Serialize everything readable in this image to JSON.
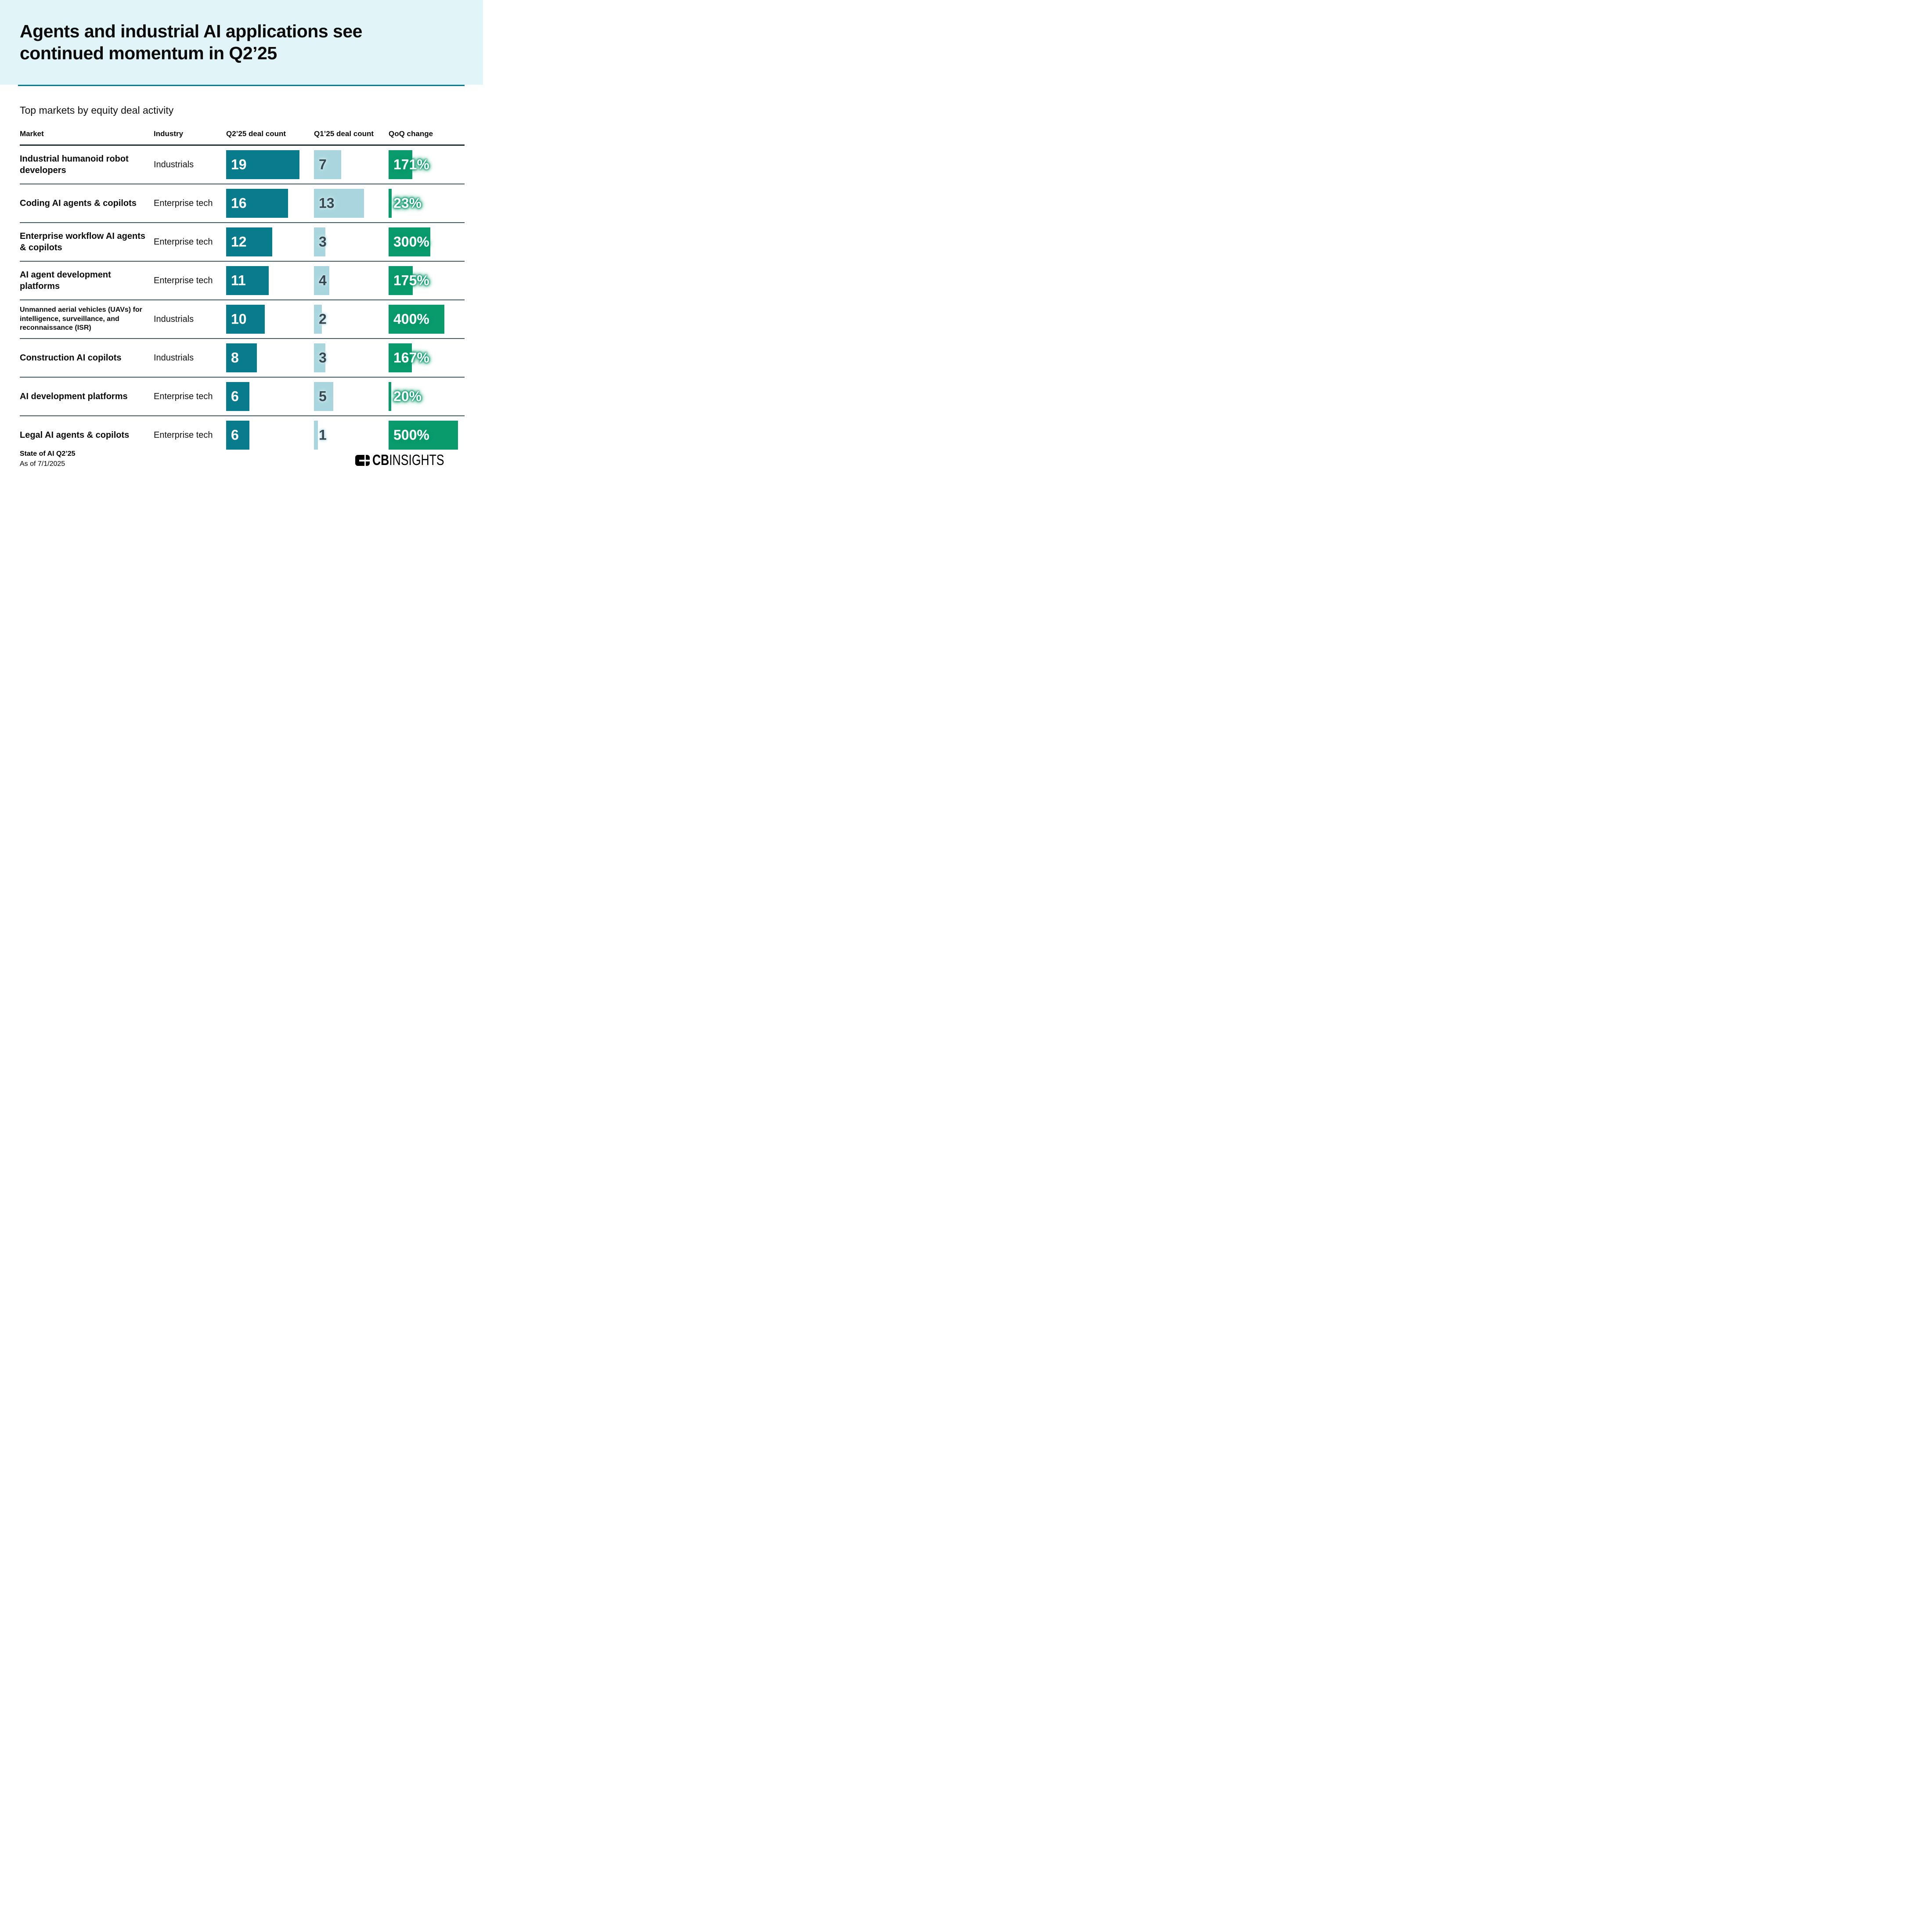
{
  "header": {
    "title": "Agents and industrial AI applications see continued momentum in Q2’25",
    "subtitle": "Top markets by equity deal activity"
  },
  "table": {
    "columns": [
      "Market",
      "Industry",
      "Q2’25 deal count",
      "Q1’25 deal count",
      "QoQ change"
    ],
    "rows": [
      {
        "market": "Industrial humanoid robot developers",
        "industry": "Industrials",
        "q2": 19,
        "q1": 7,
        "qoq": "171%",
        "qoq_pct": 171
      },
      {
        "market": "Coding AI agents & copilots",
        "industry": "Enterprise tech",
        "q2": 16,
        "q1": 13,
        "qoq": "23%",
        "qoq_pct": 23
      },
      {
        "market": "Enterprise workflow AI agents & copilots",
        "industry": "Enterprise tech",
        "q2": 12,
        "q1": 3,
        "qoq": "300%",
        "qoq_pct": 300
      },
      {
        "market": "AI agent development platforms",
        "industry": "Enterprise tech",
        "q2": 11,
        "q1": 4,
        "qoq": "175%",
        "qoq_pct": 175
      },
      {
        "market": "Unmanned aerial vehicles (UAVs) for intelligence, surveillance, and reconnaissance (ISR)",
        "industry": "Industrials",
        "q2": 10,
        "q1": 2,
        "qoq": "400%",
        "qoq_pct": 400
      },
      {
        "market": "Construction AI copilots",
        "industry": "Industrials",
        "q2": 8,
        "q1": 3,
        "qoq": "167%",
        "qoq_pct": 167
      },
      {
        "market": "AI development platforms",
        "industry": "Enterprise tech",
        "q2": 6,
        "q1": 5,
        "qoq": "20%",
        "qoq_pct": 20
      },
      {
        "market": "Legal AI agents & copilots",
        "industry": "Enterprise tech",
        "q2": 6,
        "q1": 1,
        "qoq": "500%",
        "qoq_pct": 500
      }
    ]
  },
  "footer": {
    "source_line1": "State of AI Q2’25",
    "source_line2": "As of 7/1/2025",
    "logo_cb": "CB",
    "logo_insights": "INSIGHTS"
  },
  "colors": {
    "band_bg": "#e1f5f9",
    "teal_rule": "#087c8c",
    "q2_bar": "#087c8c",
    "q1_bar": "#a9d6de",
    "q1_text": "#37474f",
    "qoq_bar": "#0a9b6d",
    "row_separator": "#455a64",
    "header_underline": "#1f2d33"
  },
  "chart_data": {
    "type": "bar",
    "title": "Agents and industrial AI applications see continued momentum in Q2’25",
    "subtitle": "Top markets by equity deal activity",
    "categories": [
      "Industrial humanoid robot developers",
      "Coding AI agents & copilots",
      "Enterprise workflow AI agents & copilots",
      "AI agent development platforms",
      "Unmanned aerial vehicles (UAVs) for intelligence, surveillance, and reconnaissance (ISR)",
      "Construction AI copilots",
      "AI development platforms",
      "Legal AI agents & copilots"
    ],
    "industries": [
      "Industrials",
      "Enterprise tech",
      "Enterprise tech",
      "Enterprise tech",
      "Industrials",
      "Industrials",
      "Enterprise tech",
      "Enterprise tech"
    ],
    "series": [
      {
        "name": "Q2’25 deal count",
        "values": [
          19,
          16,
          12,
          11,
          10,
          8,
          6,
          6
        ]
      },
      {
        "name": "Q1’25 deal count",
        "values": [
          7,
          13,
          3,
          4,
          2,
          3,
          5,
          1
        ]
      },
      {
        "name": "QoQ change (%)",
        "values": [
          171,
          23,
          300,
          175,
          400,
          167,
          20,
          500
        ]
      }
    ],
    "layout": "horizontal bars embedded in table rows, bar length proportional to value, grid off, no axes"
  }
}
